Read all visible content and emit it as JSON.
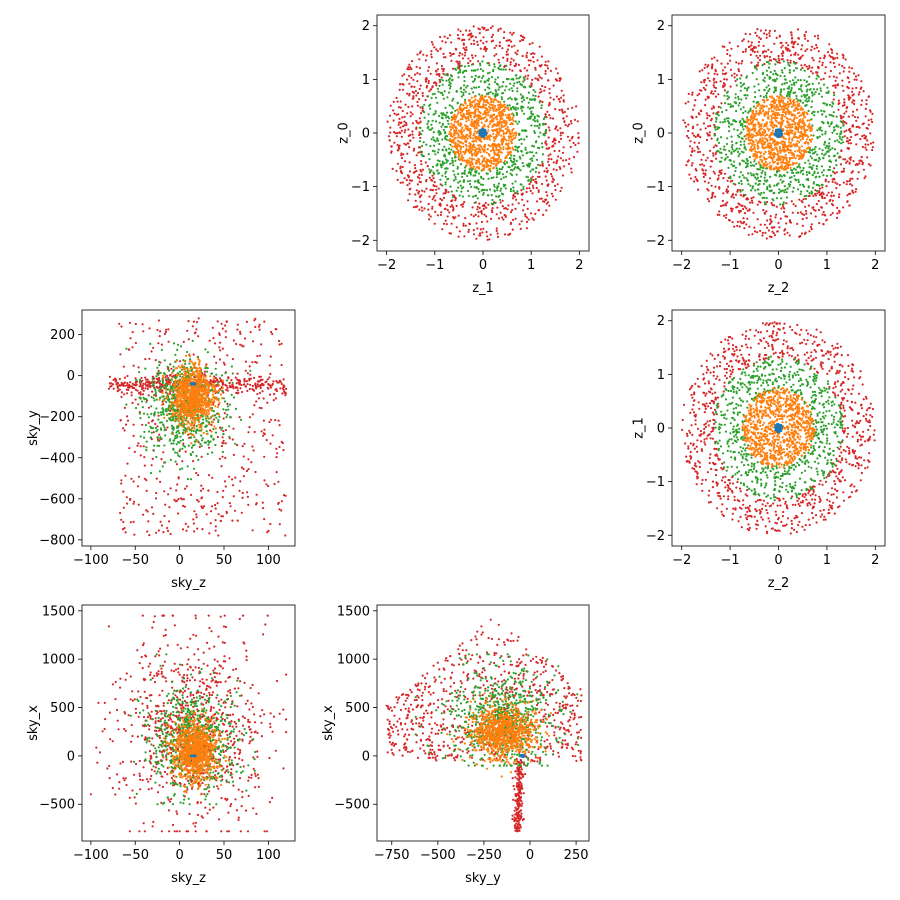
{
  "palette": {
    "c0": "#1f77b4",
    "c1": "#ff7f0e",
    "c2": "#2ca02c",
    "c3": "#d62728"
  },
  "chart_data": [
    {
      "type": "scatter",
      "xlabel": "z_1",
      "ylabel": "z_0",
      "xlim": [
        -2.2,
        2.2
      ],
      "ylim": [
        -2.2,
        2.2
      ],
      "xticks": [
        -2,
        -1,
        0,
        1,
        2
      ],
      "yticks": [
        -2,
        -1,
        0,
        1,
        2
      ],
      "xtick_labels": [
        "−2",
        "−1",
        "0",
        "1",
        "2"
      ],
      "ytick_labels": [
        "−2",
        "−1",
        "0",
        "1",
        "2"
      ],
      "grid": false,
      "series": [
        {
          "color": "#1f77b4",
          "shape": "disk",
          "center": [
            0,
            0
          ],
          "radius": [
            0,
            0.08
          ]
        },
        {
          "color": "#ff7f0e",
          "shape": "disk",
          "center": [
            0,
            0
          ],
          "radius": [
            0,
            0.7
          ]
        },
        {
          "color": "#2ca02c",
          "shape": "ring",
          "center": [
            0,
            0
          ],
          "radius": [
            0.7,
            1.35
          ]
        },
        {
          "color": "#d62728",
          "shape": "ring",
          "center": [
            0,
            0
          ],
          "radius": [
            1.3,
            2.0
          ]
        }
      ]
    },
    {
      "type": "scatter",
      "xlabel": "z_2",
      "ylabel": "z_0",
      "xlim": [
        -2.2,
        2.2
      ],
      "ylim": [
        -2.2,
        2.2
      ],
      "xticks": [
        -2,
        -1,
        0,
        1,
        2
      ],
      "yticks": [
        -2,
        -1,
        0,
        1,
        2
      ],
      "xtick_labels": [
        "−2",
        "−1",
        "0",
        "1",
        "2"
      ],
      "ytick_labels": [
        "−2",
        "−1",
        "0",
        "1",
        "2"
      ],
      "grid": false,
      "series": [
        {
          "color": "#1f77b4",
          "shape": "disk",
          "center": [
            0,
            0
          ],
          "radius": [
            0,
            0.08
          ]
        },
        {
          "color": "#ff7f0e",
          "shape": "disk",
          "center": [
            0,
            0
          ],
          "radius": [
            0,
            0.7
          ]
        },
        {
          "color": "#2ca02c",
          "shape": "ring",
          "center": [
            0,
            0
          ],
          "radius": [
            0.7,
            1.35
          ]
        },
        {
          "color": "#d62728",
          "shape": "ring",
          "center": [
            0,
            0
          ],
          "radius": [
            1.3,
            2.0
          ]
        }
      ]
    },
    {
      "type": "scatter",
      "xlabel": "sky_z",
      "ylabel": "sky_y",
      "xlim": [
        -110,
        130
      ],
      "ylim": [
        -830,
        320
      ],
      "xticks": [
        -100,
        -50,
        0,
        50,
        100
      ],
      "yticks": [
        -800,
        -600,
        -400,
        -200,
        0,
        200
      ],
      "xtick_labels": [
        "−100",
        "−50",
        "0",
        "50",
        "100"
      ],
      "ytick_labels": [
        "−800",
        "−600",
        "−400",
        "−200",
        "0",
        "200"
      ],
      "grid": false,
      "series": [
        {
          "color": "#1f77b4",
          "shape": "disk",
          "center": [
            15,
            -40
          ],
          "radius": [
            0,
            3
          ]
        },
        {
          "color": "#ff7f0e",
          "shape": "blob",
          "center": [
            15,
            -100
          ],
          "spread": [
            22,
            130
          ]
        },
        {
          "color": "#2ca02c",
          "shape": "blob",
          "center": [
            5,
            -150
          ],
          "spread": [
            40,
            220
          ],
          "xrange": [
            -60,
            90
          ],
          "yrange": [
            -620,
            260
          ]
        },
        {
          "color": "#d62728",
          "shape": "band",
          "xrange": [
            -95,
            120
          ],
          "yrange": [
            -780,
            280
          ],
          "band_y": -40
        }
      ]
    },
    {
      "type": "scatter",
      "xlabel": "z_2",
      "ylabel": "z_1",
      "xlim": [
        -2.2,
        2.2
      ],
      "ylim": [
        -2.2,
        2.2
      ],
      "xticks": [
        -2,
        -1,
        0,
        1,
        2
      ],
      "yticks": [
        -2,
        -1,
        0,
        1,
        2
      ],
      "xtick_labels": [
        "−2",
        "−1",
        "0",
        "1",
        "2"
      ],
      "ytick_labels": [
        "−2",
        "−1",
        "0",
        "1",
        "2"
      ],
      "grid": false,
      "series": [
        {
          "color": "#1f77b4",
          "shape": "disk",
          "center": [
            0,
            0
          ],
          "radius": [
            0,
            0.08
          ]
        },
        {
          "color": "#ff7f0e",
          "shape": "disk",
          "center": [
            0,
            0
          ],
          "radius": [
            0,
            0.75
          ]
        },
        {
          "color": "#2ca02c",
          "shape": "ring",
          "center": [
            0,
            0
          ],
          "radius": [
            0.7,
            1.35
          ]
        },
        {
          "color": "#d62728",
          "shape": "ring",
          "center": [
            0,
            0
          ],
          "radius": [
            1.3,
            2.0
          ]
        }
      ]
    },
    {
      "type": "scatter",
      "xlabel": "sky_z",
      "ylabel": "sky_x",
      "xlim": [
        -110,
        130
      ],
      "ylim": [
        -880,
        1560
      ],
      "xticks": [
        -100,
        -50,
        0,
        50,
        100
      ],
      "yticks": [
        -500,
        0,
        500,
        1000,
        1500
      ],
      "xtick_labels": [
        "−100",
        "−50",
        "0",
        "50",
        "100"
      ],
      "ytick_labels": [
        "−500",
        "0",
        "500",
        "1000",
        "1500"
      ],
      "grid": false,
      "series": [
        {
          "color": "#1f77b4",
          "shape": "disk",
          "center": [
            15,
            0
          ],
          "radius": [
            0,
            3
          ]
        },
        {
          "color": "#ff7f0e",
          "shape": "blob",
          "center": [
            18,
            50
          ],
          "spread": [
            22,
            280
          ]
        },
        {
          "color": "#2ca02c",
          "shape": "blob",
          "center": [
            15,
            150
          ],
          "spread": [
            45,
            500
          ],
          "xrange": [
            -55,
            85
          ],
          "yrange": [
            -500,
            1050
          ]
        },
        {
          "color": "#d62728",
          "shape": "blob",
          "center": [
            15,
            300
          ],
          "spread": [
            75,
            900
          ],
          "xrange": [
            -100,
            120
          ],
          "yrange": [
            -780,
            1450
          ]
        }
      ]
    },
    {
      "type": "scatter",
      "xlabel": "sky_y",
      "ylabel": "sky_x",
      "xlim": [
        -830,
        320
      ],
      "ylim": [
        -880,
        1560
      ],
      "xticks": [
        -750,
        -500,
        -250,
        0,
        250
      ],
      "yticks": [
        -500,
        0,
        500,
        1000,
        1500
      ],
      "xtick_labels": [
        "−750",
        "−500",
        "−250",
        "0",
        "250"
      ],
      "ytick_labels": [
        "−500",
        "0",
        "500",
        "1000",
        "1500"
      ],
      "grid": false,
      "series": [
        {
          "color": "#1f77b4",
          "shape": "disk",
          "center": [
            -40,
            0
          ],
          "radius": [
            0,
            10
          ]
        },
        {
          "color": "#ff7f0e",
          "shape": "blob",
          "center": [
            -150,
            250
          ],
          "spread": [
            160,
            240
          ]
        },
        {
          "color": "#2ca02c",
          "shape": "blob",
          "center": [
            -150,
            400
          ],
          "spread": [
            260,
            450
          ],
          "xrange": [
            -620,
            260
          ],
          "yrange": [
            -100,
            1050
          ]
        },
        {
          "color": "#d62728",
          "shape": "fan",
          "apex": [
            -70,
            -780
          ],
          "xrange": [
            -780,
            280
          ],
          "yrange": [
            -780,
            1450
          ]
        }
      ]
    }
  ]
}
